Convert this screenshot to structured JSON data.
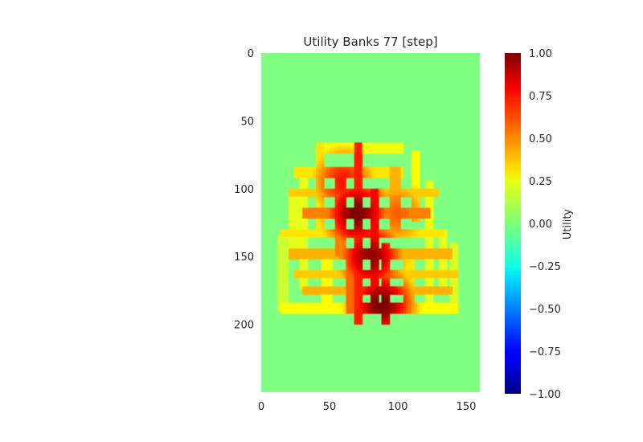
{
  "chart_data": {
    "type": "heatmap",
    "title": "Utility Banks 77 [step]",
    "xlabel": "",
    "ylabel": "",
    "x_ticks": [
      0,
      50,
      100,
      150
    ],
    "y_ticks": [
      0,
      50,
      100,
      150,
      200
    ],
    "xlim": [
      0,
      160
    ],
    "ylim": [
      0,
      250
    ],
    "y_inverted": true,
    "grid": false,
    "colormap": "jet",
    "colorbar": {
      "label": "Utility",
      "vmin": -1.0,
      "vmax": 1.0,
      "ticks": [
        "1.00",
        "0.75",
        "0.50",
        "0.25",
        "0.00",
        "−0.25",
        "−0.50",
        "−0.75",
        "−1.00"
      ],
      "tick_values": [
        1.0,
        0.75,
        0.5,
        0.25,
        0.0,
        -0.25,
        -0.5,
        -0.75,
        -1.0
      ]
    },
    "background_value": 0.0,
    "description": "Maze-shaped region of positive utility (~0.2–1.0) inside a zero-valued field; peaks near (70,118), (80,150), (88,185)",
    "corridors": [
      {
        "x0": 40,
        "x1": 105,
        "y0": 67,
        "y1": 74,
        "v": 0.22
      },
      {
        "x0": 25,
        "x1": 105,
        "y0": 85,
        "y1": 92,
        "v": 0.3
      },
      {
        "x0": 20,
        "x1": 130,
        "y0": 100,
        "y1": 107,
        "v": 0.35
      },
      {
        "x0": 30,
        "x1": 125,
        "y0": 115,
        "y1": 122,
        "v": 0.5
      },
      {
        "x0": 15,
        "x1": 135,
        "y0": 130,
        "y1": 137,
        "v": 0.3
      },
      {
        "x0": 20,
        "x1": 140,
        "y0": 145,
        "y1": 152,
        "v": 0.4
      },
      {
        "x0": 25,
        "x1": 145,
        "y0": 160,
        "y1": 167,
        "v": 0.35
      },
      {
        "x0": 30,
        "x1": 140,
        "y0": 172,
        "y1": 179,
        "v": 0.4
      },
      {
        "x0": 15,
        "x1": 145,
        "y0": 185,
        "y1": 193,
        "v": 0.25
      },
      {
        "x0": 20,
        "x1": 28,
        "y0": 100,
        "y1": 150,
        "v": 0.2
      },
      {
        "x0": 13,
        "x1": 20,
        "y0": 135,
        "y1": 190,
        "v": 0.15
      },
      {
        "x0": 28,
        "x1": 35,
        "y0": 85,
        "y1": 175,
        "v": 0.2
      },
      {
        "x0": 40,
        "x1": 47,
        "y0": 67,
        "y1": 135,
        "v": 0.3
      },
      {
        "x0": 45,
        "x1": 52,
        "y0": 150,
        "y1": 193,
        "v": 0.25
      },
      {
        "x0": 55,
        "x1": 62,
        "y0": 85,
        "y1": 150,
        "v": 0.5
      },
      {
        "x0": 62,
        "x1": 69,
        "y0": 150,
        "y1": 193,
        "v": 0.55
      },
      {
        "x0": 68,
        "x1": 75,
        "y0": 67,
        "y1": 200,
        "v": 0.7
      },
      {
        "x0": 80,
        "x1": 87,
        "y0": 100,
        "y1": 193,
        "v": 0.75
      },
      {
        "x0": 88,
        "x1": 95,
        "y0": 140,
        "y1": 200,
        "v": 0.6
      },
      {
        "x0": 95,
        "x1": 102,
        "y0": 85,
        "y1": 135,
        "v": 0.4
      },
      {
        "x0": 105,
        "x1": 112,
        "y0": 150,
        "y1": 193,
        "v": 0.3
      },
      {
        "x0": 110,
        "x1": 117,
        "y0": 72,
        "y1": 125,
        "v": 0.25
      },
      {
        "x0": 120,
        "x1": 127,
        "y0": 95,
        "y1": 190,
        "v": 0.2
      },
      {
        "x0": 130,
        "x1": 137,
        "y0": 130,
        "y1": 175,
        "v": 0.2
      },
      {
        "x0": 138,
        "x1": 145,
        "y0": 140,
        "y1": 193,
        "v": 0.18
      }
    ],
    "peaks": [
      {
        "x": 70,
        "y": 118,
        "v": 1.0
      },
      {
        "x": 80,
        "y": 150,
        "v": 0.95
      },
      {
        "x": 88,
        "y": 185,
        "v": 1.0
      },
      {
        "x": 60,
        "y": 95,
        "v": 0.7
      },
      {
        "x": 100,
        "y": 118,
        "v": 0.55
      }
    ]
  }
}
